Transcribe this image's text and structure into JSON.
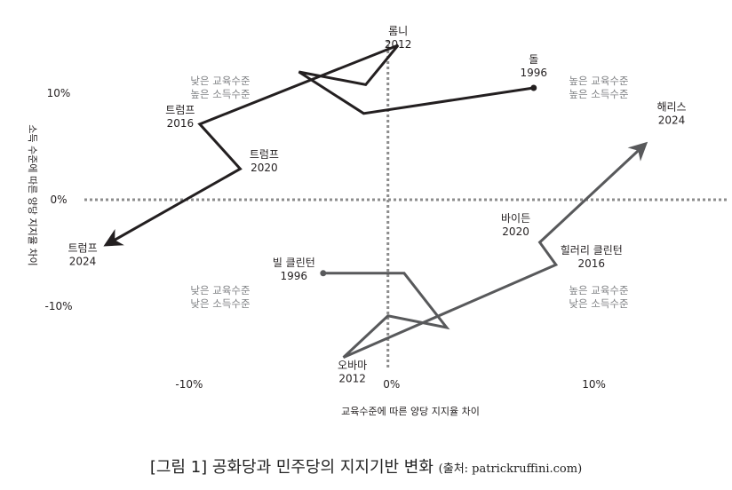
{
  "caption": {
    "text": "[그림 1] 공화당과 민주당의 지지기반 변화",
    "source": "(출처: patrickruffini.com)"
  },
  "chart_data": {
    "type": "line",
    "xlabel": "교육수준에 따른 양당 지지율 차이",
    "ylabel": "소득 수준에 따른 양당 지지율 차이",
    "xlim": [
      -15,
      17
    ],
    "ylim": [
      -15,
      15
    ],
    "x_ticks": [
      {
        "value": -10,
        "label": "-10%"
      },
      {
        "value": 0,
        "label": "0%"
      },
      {
        "value": 10,
        "label": "10%"
      }
    ],
    "y_ticks": [
      {
        "value": 10,
        "label": "10%"
      },
      {
        "value": 0,
        "label": "0%"
      },
      {
        "value": -10,
        "label": "-10%"
      }
    ],
    "grid": "zero lines only (dotted)",
    "quadrant_labels": [
      {
        "position": "top-left",
        "lines": [
          "낮은 교육수준",
          "높은 소득수준"
        ]
      },
      {
        "position": "top-right",
        "lines": [
          "높은 교육수준",
          "높은 소득수준"
        ]
      },
      {
        "position": "bottom-left",
        "lines": [
          "낮은 교육수준",
          "낮은 소득수준"
        ]
      },
      {
        "position": "bottom-right",
        "lines": [
          "높은 교육수준",
          "낮은 소득수준"
        ]
      }
    ],
    "series": [
      {
        "color": "#231f20",
        "points": [
          {
            "x": 7.2,
            "y": 10.5,
            "label": [
              "돌",
              "1996"
            ]
          },
          {
            "x": -1.2,
            "y": 8.1,
            "label": null
          },
          {
            "x": -4.4,
            "y": 12.0,
            "label": null
          },
          {
            "x": -1.1,
            "y": 10.8,
            "label": null
          },
          {
            "x": 0.5,
            "y": 14.5,
            "label": [
              "롬니",
              "2012"
            ]
          },
          {
            "x": -9.3,
            "y": 7.1,
            "label": [
              "트럼프",
              "2016"
            ]
          },
          {
            "x": -7.3,
            "y": 2.9,
            "label": [
              "트럼프",
              "2020"
            ]
          },
          {
            "x": -13.9,
            "y": -4.2,
            "label": [
              "트럼프",
              "2024"
            ]
          }
        ]
      },
      {
        "color": "#58595b",
        "points": [
          {
            "x": -3.2,
            "y": -6.9,
            "label": [
              "빌 클린턴",
              "1996"
            ]
          },
          {
            "x": 0.8,
            "y": -6.9,
            "label": null
          },
          {
            "x": 2.9,
            "y": -12.0,
            "label": null
          },
          {
            "x": 0.0,
            "y": -10.9,
            "label": null
          },
          {
            "x": -2.2,
            "y": -14.8,
            "label": [
              "오바마",
              "2012"
            ]
          },
          {
            "x": 8.3,
            "y": -6.1,
            "label": [
              "힐러리 클린턴",
              "2016"
            ]
          },
          {
            "x": 7.5,
            "y": -4.0,
            "label": [
              "바이든",
              "2020"
            ]
          },
          {
            "x": 12.7,
            "y": 5.2,
            "label": [
              "해리스",
              "2024"
            ]
          }
        ]
      }
    ]
  }
}
